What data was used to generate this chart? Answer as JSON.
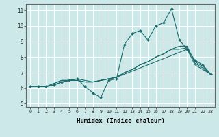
{
  "title": "",
  "xlabel": "Humidex (Indice chaleur)",
  "background_color": "#cce8e8",
  "grid_color": "#ffffff",
  "line_color": "#1a6b6b",
  "xlim": [
    -0.5,
    23.5
  ],
  "ylim": [
    4.8,
    11.4
  ],
  "xticks": [
    0,
    1,
    2,
    3,
    4,
    5,
    6,
    7,
    8,
    9,
    10,
    11,
    12,
    13,
    14,
    15,
    16,
    17,
    18,
    19,
    20,
    21,
    22,
    23
  ],
  "yticks": [
    5,
    6,
    7,
    8,
    9,
    10,
    11
  ],
  "series": [
    [
      6.1,
      6.1,
      6.1,
      6.2,
      6.4,
      6.5,
      6.6,
      6.1,
      5.7,
      5.4,
      6.5,
      6.6,
      8.8,
      9.5,
      9.7,
      9.1,
      10.0,
      10.2,
      11.1,
      9.1,
      8.5,
      7.8,
      7.5,
      6.9
    ],
    [
      6.1,
      6.1,
      6.1,
      6.3,
      6.5,
      6.5,
      6.5,
      6.4,
      6.4,
      6.5,
      6.6,
      6.7,
      6.9,
      7.1,
      7.3,
      7.5,
      7.7,
      7.9,
      8.1,
      8.3,
      8.5,
      7.5,
      7.2,
      6.9
    ],
    [
      6.1,
      6.1,
      6.1,
      6.3,
      6.5,
      6.5,
      6.5,
      6.4,
      6.4,
      6.5,
      6.6,
      6.7,
      7.0,
      7.2,
      7.5,
      7.7,
      8.0,
      8.2,
      8.5,
      8.7,
      8.7,
      7.6,
      7.3,
      6.9
    ],
    [
      6.1,
      6.1,
      6.1,
      6.2,
      6.4,
      6.5,
      6.6,
      6.5,
      6.4,
      6.5,
      6.6,
      6.7,
      7.0,
      7.2,
      7.5,
      7.7,
      8.0,
      8.2,
      8.5,
      8.5,
      8.6,
      7.7,
      7.4,
      6.9
    ]
  ]
}
